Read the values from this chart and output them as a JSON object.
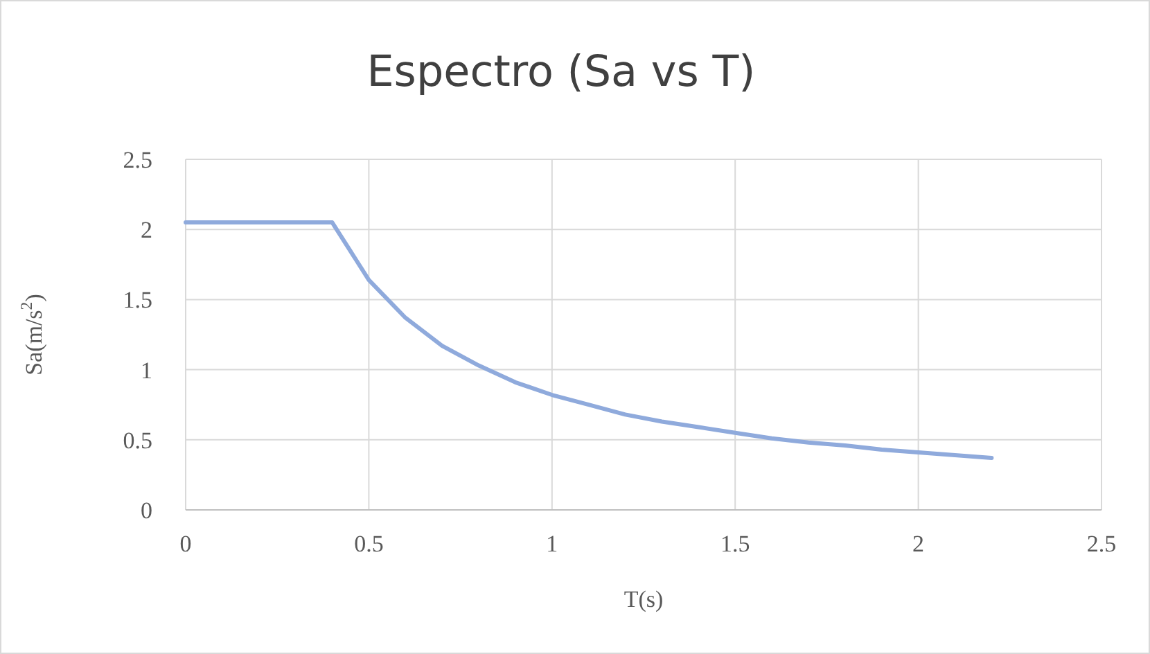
{
  "chart_data": {
    "type": "line",
    "title": "Espectro (Sa vs T)",
    "xlabel": "T(s)",
    "ylabel": "Sa(m/s$^{2}$)",
    "x": [
      0,
      0.4,
      0.5,
      0.6,
      0.7,
      0.8,
      0.9,
      1.0,
      1.1,
      1.2,
      1.3,
      1.4,
      1.5,
      1.6,
      1.7,
      1.8,
      1.9,
      2.0,
      2.1,
      2.2
    ],
    "series": [
      {
        "color": "#8faadc",
        "values": [
          2.05,
          2.05,
          1.64,
          1.37,
          1.17,
          1.03,
          0.91,
          0.82,
          0.75,
          0.68,
          0.63,
          0.59,
          0.55,
          0.51,
          0.48,
          0.46,
          0.43,
          0.41,
          0.39,
          0.37
        ]
      }
    ],
    "xlim": [
      0,
      2.5
    ],
    "xticks": [
      0,
      0.5,
      1,
      1.5,
      2,
      2.5
    ],
    "ylim": [
      0,
      2.5
    ],
    "yticks": [
      0,
      0.5,
      1,
      1.5,
      2,
      2.5
    ],
    "grid": true,
    "marker": "none",
    "line_style": "solid"
  }
}
